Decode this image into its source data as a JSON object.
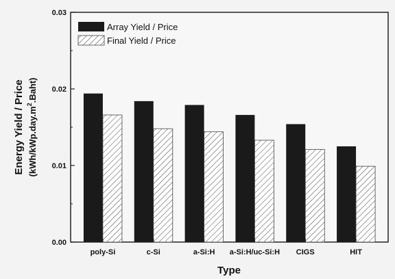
{
  "chart_data": {
    "type": "bar",
    "categories": [
      "poly-Si",
      "c-Si",
      "a-Si:H",
      "a-Si:H/uc-Si:H",
      "CIGS",
      "HIT"
    ],
    "series": [
      {
        "name": "Array Yield / Price",
        "values": [
          0.0194,
          0.0184,
          0.0179,
          0.0166,
          0.0154,
          0.0125
        ],
        "color": "#1a1a1a",
        "pattern": "solid"
      },
      {
        "name": "Final Yield / Price",
        "values": [
          0.0166,
          0.0148,
          0.0144,
          0.0133,
          0.0121,
          0.0099
        ],
        "color": "#ffffff",
        "pattern": "hatch"
      }
    ],
    "title": "",
    "xlabel": "Type",
    "ylabel_line1": "Energy Yield / Price",
    "ylabel_line2_prefix": "(kWh/kWp.day.m",
    "ylabel_superscript": "2",
    "ylabel_line2_suffix": ".Baht)",
    "ylim": [
      0,
      0.03
    ],
    "y_ticks": [
      0.0,
      0.01,
      0.02,
      0.03
    ],
    "y_tick_labels": [
      "0.00",
      "0.01",
      "0.02",
      "0.03"
    ],
    "grid": false,
    "legend_position": "top-left"
  }
}
